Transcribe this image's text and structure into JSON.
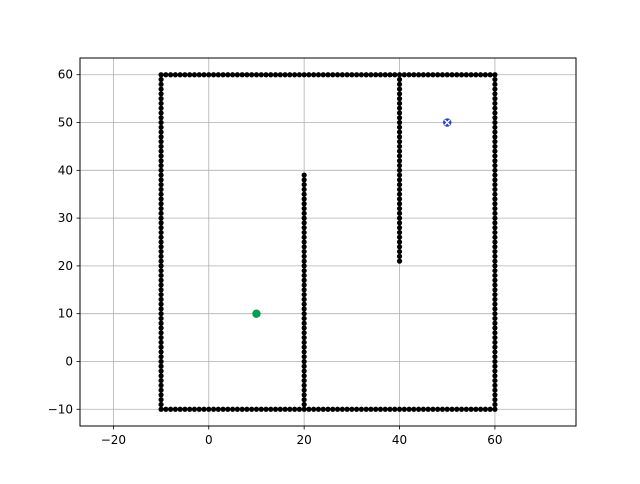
{
  "chart_data": {
    "type": "scatter",
    "title": "",
    "xlabel": "",
    "ylabel": "",
    "xlim": [
      -27,
      77
    ],
    "ylim": [
      -13.5,
      63.5
    ],
    "xticks": [
      -20,
      0,
      20,
      40,
      60
    ],
    "yticks": [
      -10,
      0,
      10,
      20,
      30,
      40,
      50,
      60
    ],
    "xtick_labels": [
      "−20",
      "0",
      "20",
      "40",
      "60"
    ],
    "ytick_labels": [
      "−10",
      "0",
      "10",
      "20",
      "30",
      "40",
      "50",
      "60"
    ],
    "grid": true,
    "colors": {
      "obstacle": "#000000",
      "start": "#009e4f",
      "goal": "#1f3fd1",
      "grid": "#b0b0b0"
    },
    "obstacles": {
      "segments": [
        {
          "from": [
            -10,
            -10
          ],
          "to": [
            60,
            -10
          ]
        },
        {
          "from": [
            60,
            -10
          ],
          "to": [
            60,
            60
          ]
        },
        {
          "from": [
            -10,
            60
          ],
          "to": [
            60,
            60
          ]
        },
        {
          "from": [
            -10,
            -10
          ],
          "to": [
            -10,
            60
          ]
        },
        {
          "from": [
            20,
            -10
          ],
          "to": [
            20,
            39
          ]
        },
        {
          "from": [
            40,
            21
          ],
          "to": [
            40,
            60
          ]
        }
      ],
      "step": 1
    },
    "start": {
      "x": 10,
      "y": 10,
      "marker": "o"
    },
    "goal": {
      "x": 50,
      "y": 50,
      "marker": "x"
    }
  }
}
